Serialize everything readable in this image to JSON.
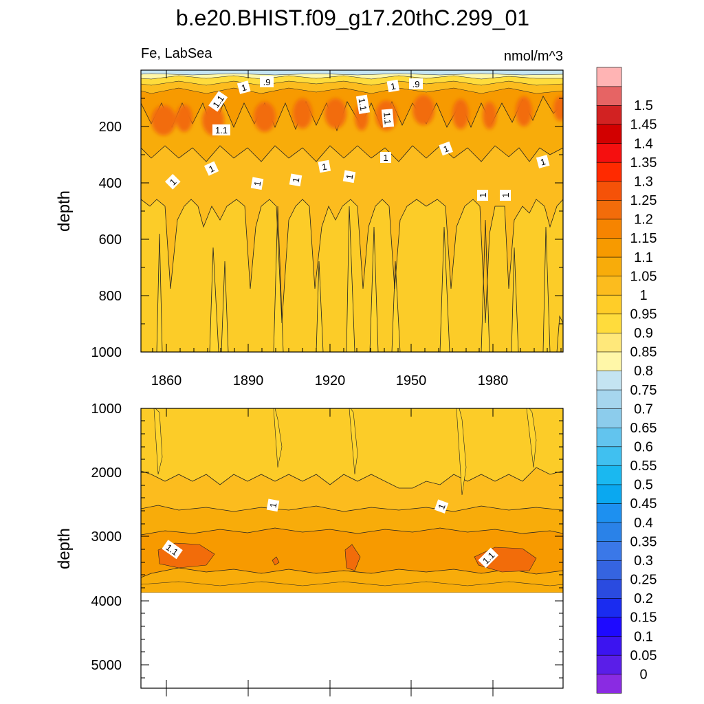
{
  "chart_data": {
    "type": "heatmap",
    "title": "b.e20.BHIST.f09_g17.20thC.299_01",
    "variable_label": "Fe, LabSea",
    "units_label": "nmol/m^3",
    "colorbar": {
      "levels": [
        "0",
        "0.05",
        "0.1",
        "0.15",
        "0.2",
        "0.25",
        "0.3",
        "0.35",
        "0.4",
        "0.45",
        "0.5",
        "0.55",
        "0.6",
        "0.65",
        "0.7",
        "0.75",
        "0.8",
        "0.85",
        "0.9",
        "0.95",
        "1",
        "1.05",
        "1.1",
        "1.15",
        "1.2",
        "1.25",
        "1.3",
        "1.35",
        "1.4",
        "1.45",
        "1.5"
      ],
      "colors": [
        "#8a2be2",
        "#5a1ee8",
        "#3c14f0",
        "#1e0aff",
        "#1a2cf0",
        "#2a4be0",
        "#3564e0",
        "#3a78e8",
        "#2a82e8",
        "#1d90f0",
        "#0aa8f0",
        "#1ab8f0",
        "#40c0f0",
        "#62c4ee",
        "#8cccec",
        "#a6d6ee",
        "#c4e4f2",
        "#fff7a8",
        "#ffe87a",
        "#ffdc3c",
        "#ffcd28",
        "#fcbc1e",
        "#f8ac0a",
        "#f79a00",
        "#f68400",
        "#f26c0a",
        "#f55208",
        "#ff2a00",
        "#f50f0f",
        "#d20000",
        "#d22222",
        "#e66464",
        "#ffb4b4"
      ]
    },
    "panels": [
      {
        "id": "upper",
        "y_axis_label": "depth",
        "y_range": [
          0,
          1000
        ],
        "y_ticks": [
          "200",
          "400",
          "600",
          "800",
          "1000"
        ],
        "x_range": [
          1850,
          2005
        ],
        "x_ticks": [
          "1860",
          "1890",
          "1920",
          "1950",
          "1980"
        ],
        "contour_labels": [
          ".9",
          "1",
          ".9",
          "1",
          "1.1",
          "1.1",
          "1.1",
          "1.1",
          "1",
          "1",
          "1",
          "1",
          "1",
          "1",
          "1",
          "1",
          "1",
          "1",
          "1",
          "1"
        ]
      },
      {
        "id": "lower",
        "y_axis_label": "depth",
        "y_range": [
          1000,
          5400
        ],
        "y_ticks": [
          "1000",
          "2000",
          "3000",
          "4000",
          "5000"
        ],
        "x_range": [
          1850,
          2005
        ],
        "data_bottom_depth": 3870,
        "contour_labels": [
          "1",
          "1",
          "1.1",
          "1.1"
        ]
      }
    ]
  }
}
